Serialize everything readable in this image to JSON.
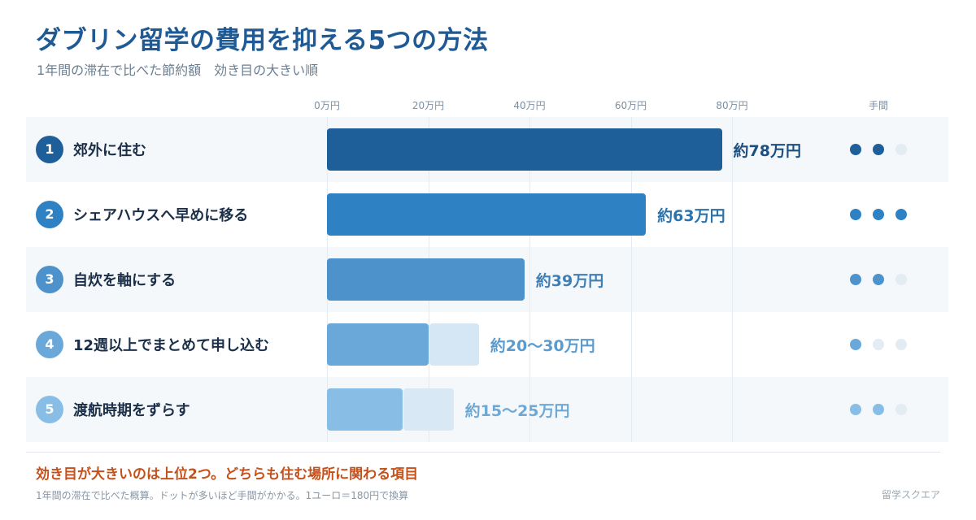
{
  "title": "ダブリン留学の費用を抑える5つの方法",
  "subtitle": "1年間の滞在で比べた節約額　効き目の大きい順",
  "effort_header": "手間",
  "highlight": "効き目が大きいのは上位2つ。どちらも住む場所に関わる項目",
  "footnote": "1年間の滞在で比べた概算。ドットが多いほど手間がかかる。1ユーロ＝180円で換算",
  "brand": "留学スクエア",
  "chart_data": {
    "type": "bar",
    "orientation": "horizontal",
    "title": "ダブリン留学の費用を抑える5つの方法",
    "unit": "万円",
    "xlim": [
      0,
      80
    ],
    "ticks": [
      {
        "value": 0,
        "label": "0万円"
      },
      {
        "value": 20,
        "label": "20万円"
      },
      {
        "value": 40,
        "label": "40万円"
      },
      {
        "value": 60,
        "label": "60万円"
      },
      {
        "value": 80,
        "label": "80万円"
      }
    ],
    "effort_max": 3,
    "rows": [
      {
        "rank": "1",
        "label": "郊外に住む",
        "low": 78,
        "high": 78,
        "value_label": "約78万円",
        "effort": 2,
        "color": "#1f5f99",
        "range_color": "#1f5f99",
        "dot_color": "#1f5f99",
        "text_color": "#1c4f80"
      },
      {
        "rank": "2",
        "label": "シェアハウスへ早めに移る",
        "low": 63,
        "high": 63,
        "value_label": "約63万円",
        "effort": 3,
        "color": "#2e82c4",
        "range_color": "#2e82c4",
        "dot_color": "#2e82c4",
        "text_color": "#2a73ad"
      },
      {
        "rank": "3",
        "label": "自炊を軸にする",
        "low": 39,
        "high": 39,
        "value_label": "約39万円",
        "effort": 2,
        "color": "#4d92cb",
        "range_color": "#4d92cb",
        "dot_color": "#4d92cb",
        "text_color": "#3f7fb6"
      },
      {
        "rank": "4",
        "label": "12週以上でまとめて申し込む",
        "low": 20,
        "high": 30,
        "value_label": "約20〜30万円",
        "effort": 1,
        "color": "#6aa8d9",
        "range_color": "#d5e6f4",
        "dot_color": "#6aa8d9",
        "text_color": "#5b9bcd"
      },
      {
        "rank": "5",
        "label": "渡航時期をずらす",
        "low": 15,
        "high": 25,
        "value_label": "約15〜25万円",
        "effort": 2,
        "color": "#88bde5",
        "range_color": "#d8e8f5",
        "dot_color": "#88bde5",
        "text_color": "#6ea9d6"
      }
    ]
  }
}
